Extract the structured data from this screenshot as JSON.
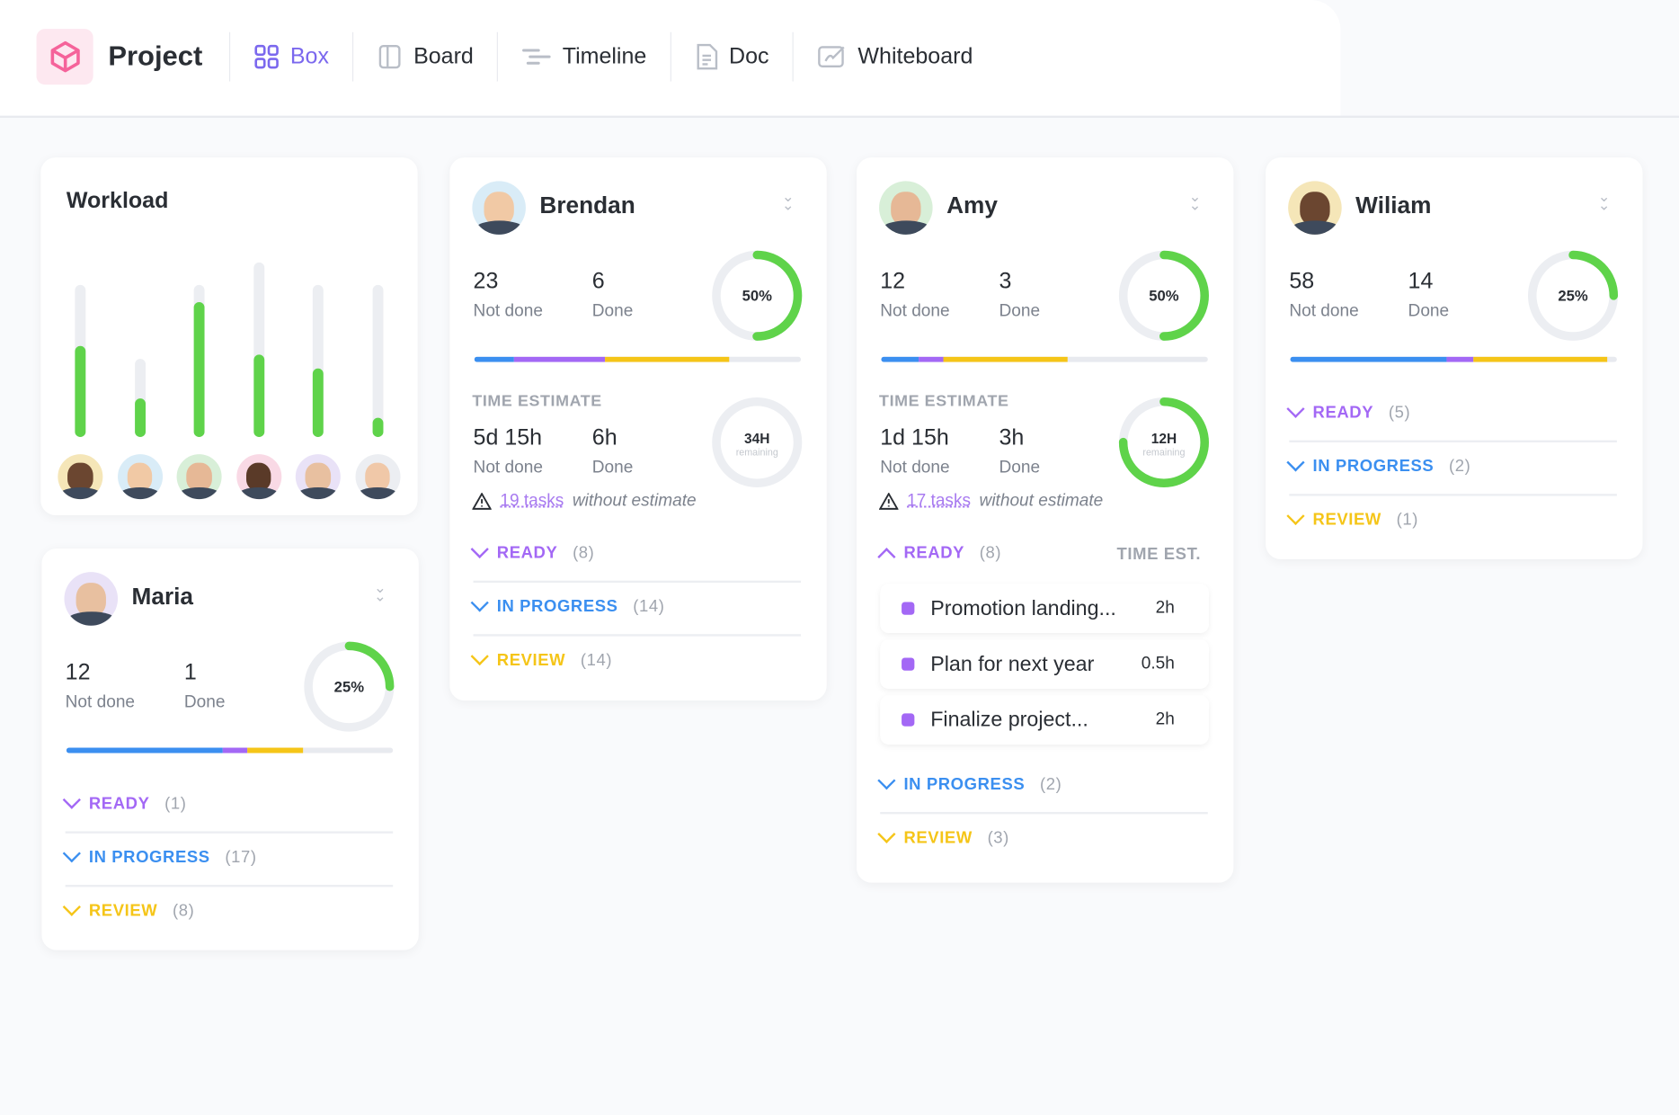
{
  "header": {
    "title": "Project",
    "tabs": [
      {
        "label": "Box",
        "icon": "grid-icon",
        "active": true
      },
      {
        "label": "Board",
        "icon": "board-icon"
      },
      {
        "label": "Timeline",
        "icon": "timeline-icon"
      },
      {
        "label": "Doc",
        "icon": "doc-icon"
      },
      {
        "label": "Whiteboard",
        "icon": "whiteboard-icon"
      }
    ]
  },
  "colors": {
    "accent": "#7b68ee",
    "ready": "#a368f5",
    "in_progress": "#3b8ff0",
    "review": "#f5c518",
    "done": "#5fd34a",
    "track": "#e8eaef"
  },
  "workload": {
    "title": "Workload",
    "capacity": [
      0.87,
      0.45,
      0.87,
      1.0,
      0.87,
      0.87
    ],
    "load": [
      0.52,
      0.22,
      0.77,
      0.47,
      0.39,
      0.11
    ]
  },
  "people": {
    "brendan": {
      "name": "Brendan",
      "not_done": "23",
      "not_done_label": "Not done",
      "done": "6",
      "done_label": "Done",
      "percent": "50%",
      "pct": 0.5,
      "progress": {
        "blue": 12,
        "purple": 28,
        "yellow": 38
      },
      "time_estimate": {
        "label": "TIME ESTIMATE",
        "not_done": "5d 15h",
        "done": "6h",
        "ring_value": "34H",
        "ring_sub": "remaining",
        "ring_pct": 0,
        "warn_link": "19 tasks",
        "warn_text": "without estimate"
      },
      "groups": [
        {
          "label": "READY",
          "count": "(8)"
        },
        {
          "label": "IN PROGRESS",
          "count": "(14)"
        },
        {
          "label": "REVIEW",
          "count": "(14)"
        }
      ]
    },
    "amy": {
      "name": "Amy",
      "not_done": "12",
      "not_done_label": "Not done",
      "done": "3",
      "done_label": "Done",
      "percent": "50%",
      "pct": 0.5,
      "progress": {
        "blue": 11.5,
        "purple": 7.5,
        "yellow": 38
      },
      "time_estimate": {
        "label": "TIME ESTIMATE",
        "not_done": "1d 15h",
        "done": "3h",
        "ring_value": "12H",
        "ring_sub": "remaining",
        "ring_pct": 0.75,
        "warn_link": "17 tasks",
        "warn_text": "without estimate"
      },
      "groups": [
        {
          "label": "READY",
          "count": "(8)"
        },
        {
          "label": "IN PROGRESS",
          "count": "(2)"
        },
        {
          "label": "REVIEW",
          "count": "(3)"
        }
      ],
      "time_est_header": "TIME EST.",
      "tasks": [
        {
          "name": "Promotion landing...",
          "est": "2h"
        },
        {
          "name": "Plan for next year",
          "est": "0.5h"
        },
        {
          "name": "Finalize project...",
          "est": "2h"
        }
      ]
    },
    "wiliam": {
      "name": "Wiliam",
      "not_done": "58",
      "not_done_label": "Not done",
      "done": "14",
      "done_label": "Done",
      "percent": "25%",
      "pct": 0.25,
      "progress": {
        "blue": 48,
        "purple": 8,
        "yellow": 41
      },
      "groups": [
        {
          "label": "READY",
          "count": "(5)"
        },
        {
          "label": "IN PROGRESS",
          "count": "(2)"
        },
        {
          "label": "REVIEW",
          "count": "(1)"
        }
      ]
    },
    "maria": {
      "name": "Maria",
      "not_done": "12",
      "not_done_label": "Not done",
      "done": "1",
      "done_label": "Done",
      "percent": "25%",
      "pct": 0.25,
      "progress": {
        "blue": 48,
        "purple": 7.5,
        "yellow": 17
      },
      "groups": [
        {
          "label": "READY",
          "count": "(1)"
        },
        {
          "label": "IN PROGRESS",
          "count": "(17)"
        },
        {
          "label": "REVIEW",
          "count": "(8)"
        }
      ]
    }
  }
}
